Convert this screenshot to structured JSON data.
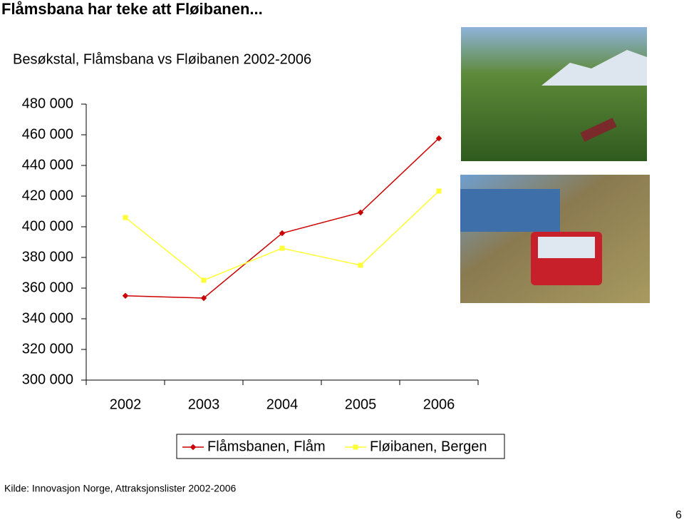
{
  "title": "Flåmsbana har teke att Fløibanen...",
  "chart_data": {
    "type": "line",
    "title": "Besøkstal, Flåmsbana vs Fløibanen 2002-2006",
    "categories": [
      "2002",
      "2003",
      "2004",
      "2005",
      "2006"
    ],
    "series": [
      {
        "name": "Flåmsbanen, Flåm",
        "color": "#cc0000",
        "values": [
          355000,
          353500,
          395800,
          409300,
          457700
        ]
      },
      {
        "name": "Fløibanen, Bergen",
        "color": "#ffff33",
        "values": [
          406000,
          365100,
          386000,
          374900,
          423300
        ]
      }
    ],
    "ylim": [
      300000,
      480000
    ],
    "yticks": [
      {
        "value": 300000,
        "label": "300 000"
      },
      {
        "value": 320000,
        "label": "320 000"
      },
      {
        "value": 340000,
        "label": "340 000"
      },
      {
        "value": 360000,
        "label": "360 000"
      },
      {
        "value": 380000,
        "label": "380 000"
      },
      {
        "value": 400000,
        "label": "400 000"
      },
      {
        "value": 420000,
        "label": "420 000"
      },
      {
        "value": 440000,
        "label": "440 000"
      },
      {
        "value": 460000,
        "label": "460 000"
      },
      {
        "value": 480000,
        "label": "480 000"
      }
    ],
    "grid": false,
    "legend": "bottom"
  },
  "source": "Kilde: Innovasjon Norge, Attraksjonslister 2002-2006",
  "page_number": "6"
}
